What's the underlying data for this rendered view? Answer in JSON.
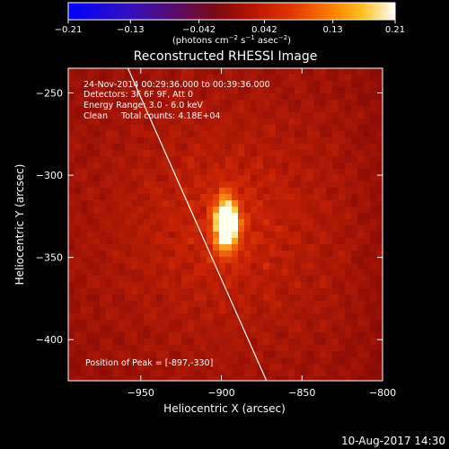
{
  "chart_data": {
    "type": "heatmap",
    "title": "Reconstructed RHESSI Image",
    "xlabel": "Heliocentric X (arcsec)",
    "ylabel": "Heliocentric Y (arcsec)",
    "xlim": [
      -995,
      -800
    ],
    "ylim": [
      -425,
      -235
    ],
    "x_ticks": [
      -950,
      -900,
      -850,
      -800
    ],
    "y_ticks": [
      -250,
      -300,
      -350,
      -400
    ],
    "x_tick_labels": [
      "−950",
      "−900",
      "−850",
      "−800"
    ],
    "y_tick_labels": [
      "−250",
      "−300",
      "−350",
      "−400"
    ],
    "colorbar": {
      "min": -0.21,
      "max": 0.21,
      "ticks": [
        -0.21,
        -0.13,
        -0.042,
        0.042,
        0.13,
        0.21
      ],
      "tick_labels": [
        "−0.21",
        "−0.13",
        "−0.042",
        "0.042",
        "0.13",
        "0.21"
      ],
      "unit_label": "(photons cm",
      "unit_exp1": "−2",
      "unit_mid": " s",
      "unit_exp2": "−1",
      "unit_mid2": " asec",
      "unit_exp3": "−2",
      "unit_end": ")"
    },
    "annotations": {
      "time_range": "24-Nov-2014 00:29:36.000 to 00:39:36.000",
      "detectors": "Detectors: 3F 6F 9F, Att 0",
      "energy": "Energy Range: 3.0 - 6.0 keV",
      "clean": "Clean     Total counts: 4.18E+04",
      "peak": "Position of Peak = [-897,-330]"
    },
    "peak_position": [
      -897,
      -330
    ],
    "limb_line": [
      [
        -958,
        -235
      ],
      [
        -872,
        -425
      ]
    ],
    "source": {
      "x": -897,
      "y": -330,
      "peak_value": 0.21
    }
  },
  "footer": {
    "date": "10-Aug-2017 14:30"
  },
  "colors": {
    "background": "#000000",
    "text": "#ffffff",
    "limb": "#ffffff"
  }
}
